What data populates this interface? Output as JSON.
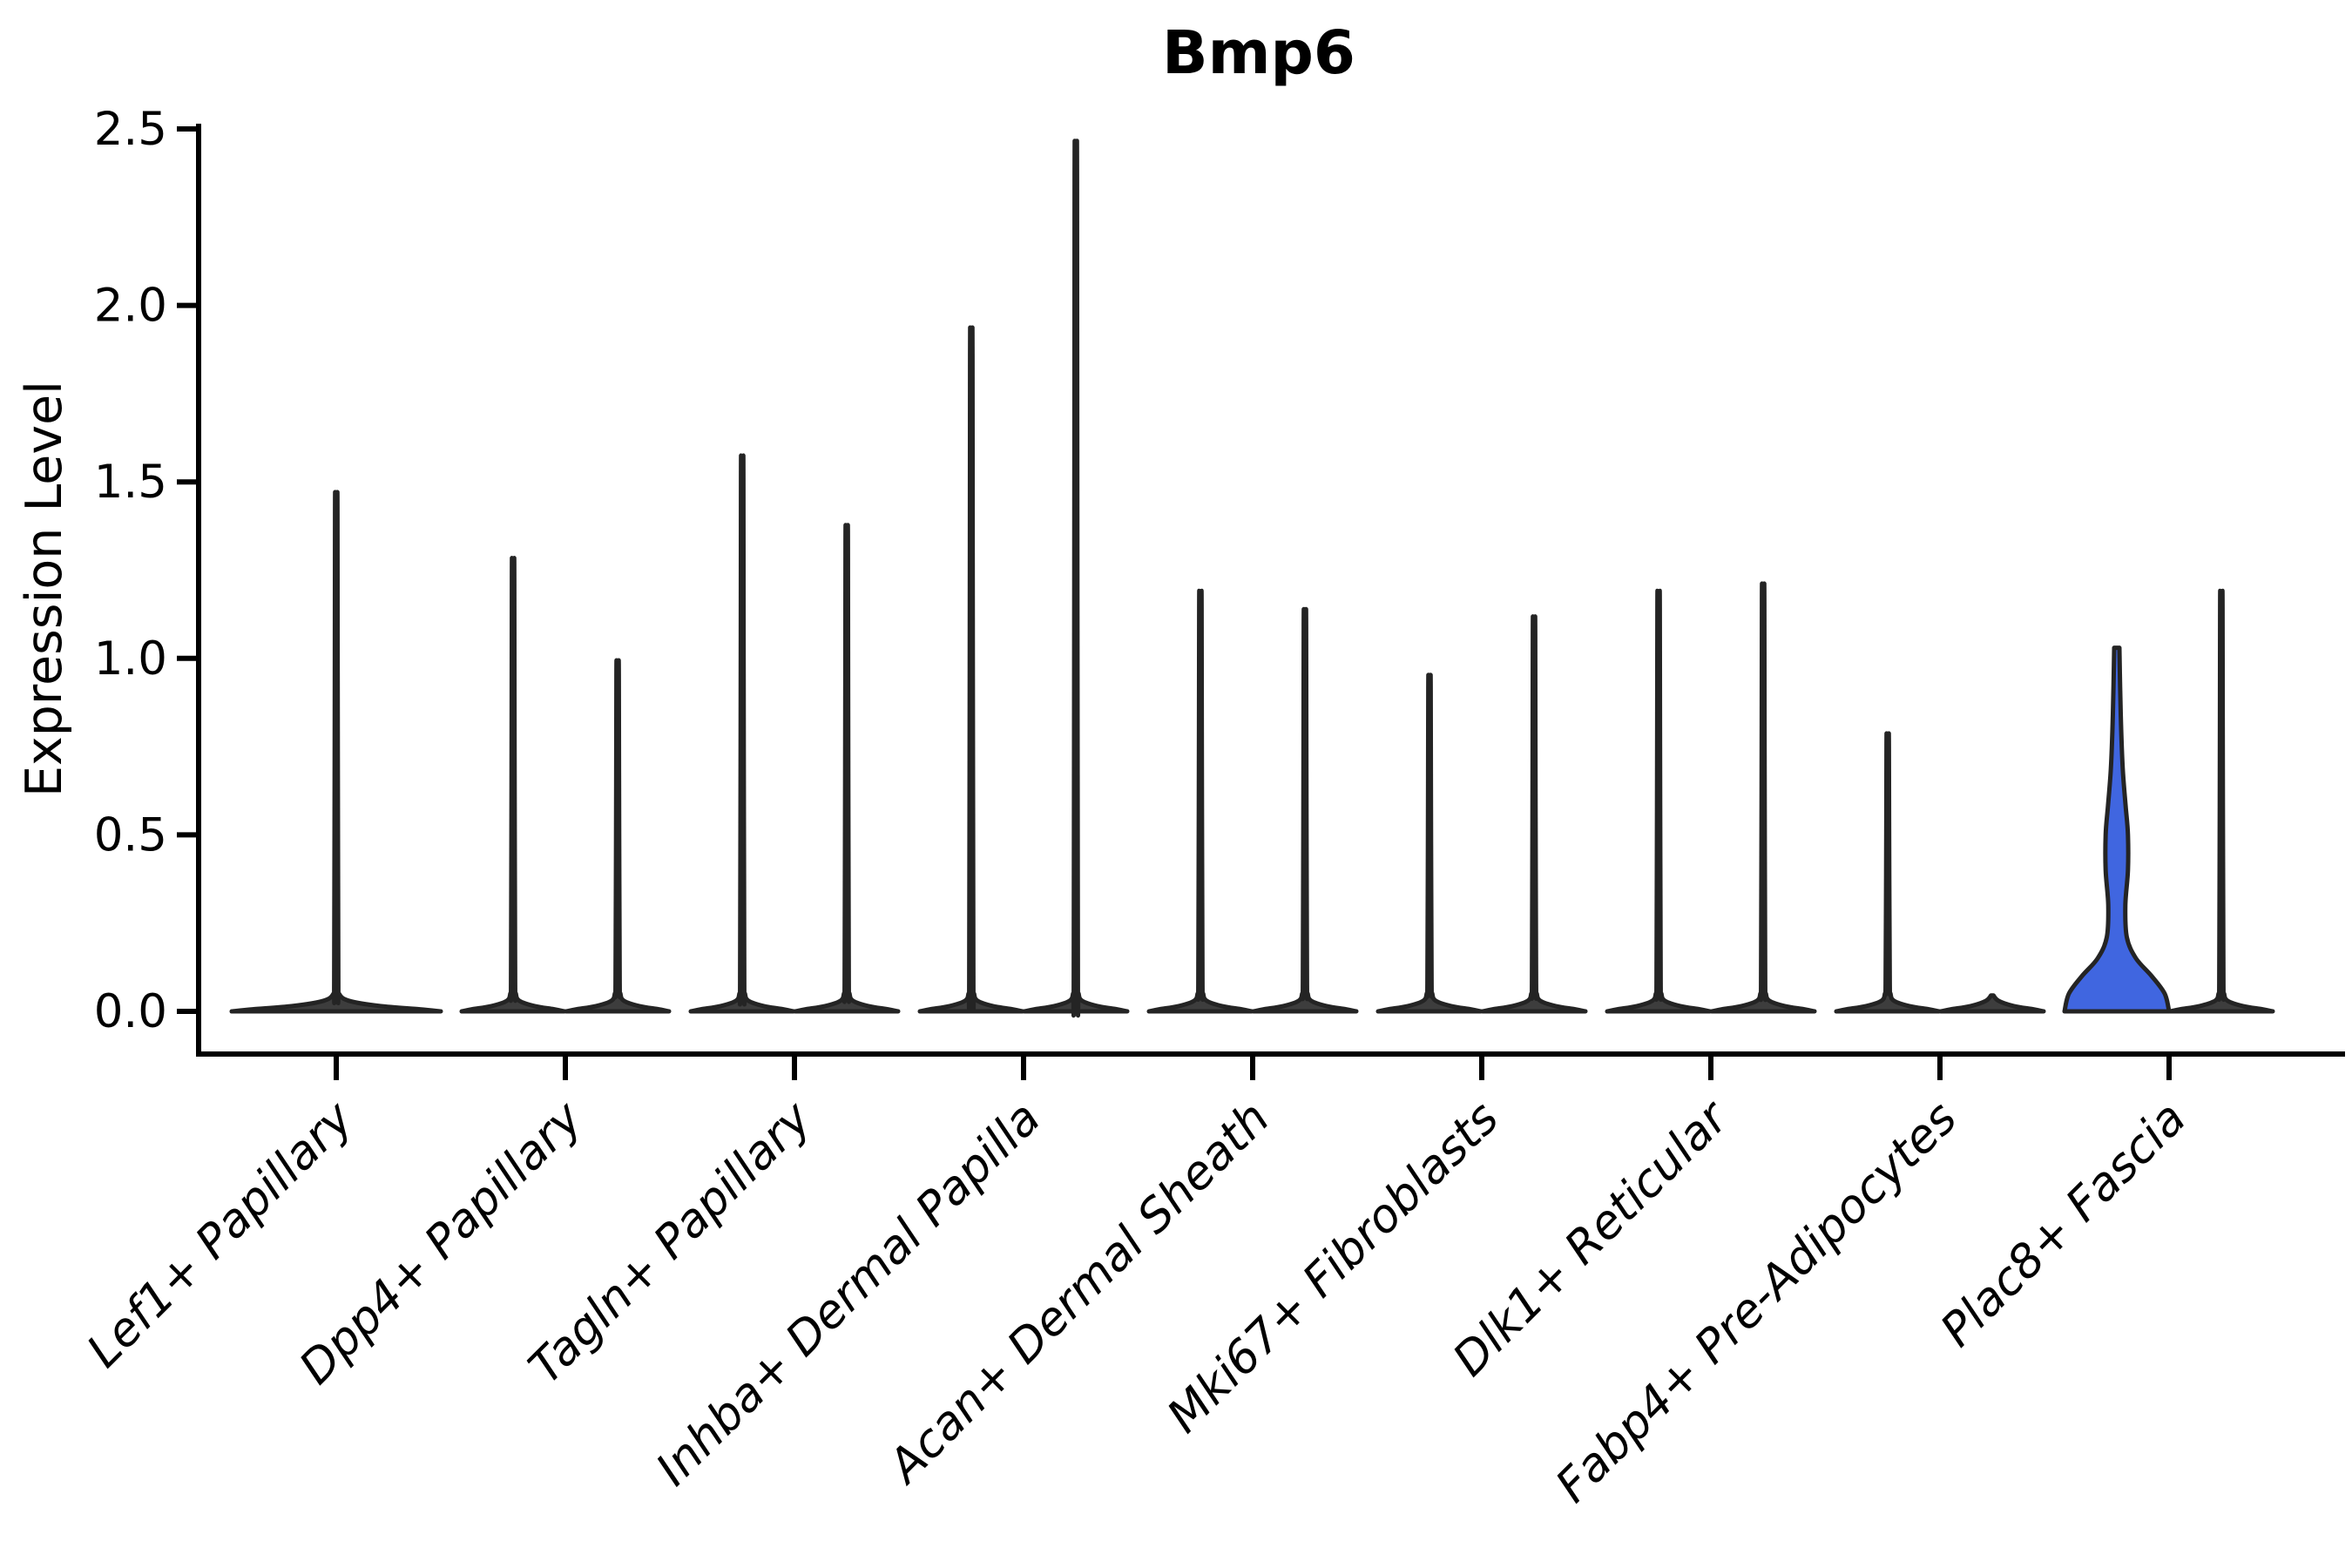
{
  "chart_data": {
    "type": "violin",
    "title": "Bmp6",
    "ylabel": "Expression Level",
    "xlabel": "",
    "ylim": [
      0,
      2.5
    ],
    "yticks": [
      "0.0",
      "0.5",
      "1.0",
      "1.5",
      "2.0",
      "2.5"
    ],
    "grid": false,
    "legend": "none",
    "colors": {
      "violin_fill": "#3d3d3d",
      "violin_stroke": "#242424",
      "highlight_fill": "#4066e0",
      "axis": "#000000"
    },
    "categories": [
      {
        "label": "Lef1+ Papillary",
        "violins": [
          {
            "position": "center",
            "max": 1.44,
            "style": "spike",
            "width": "full",
            "fill": "default"
          }
        ]
      },
      {
        "label": "Dpp4+ Papillary",
        "violins": [
          {
            "position": "left",
            "max": 1.26,
            "style": "spike",
            "fill": "default"
          },
          {
            "position": "right",
            "max": 0.98,
            "style": "spike",
            "fill": "default"
          }
        ]
      },
      {
        "label": "Tagln+ Papillary",
        "violins": [
          {
            "position": "left",
            "max": 1.54,
            "style": "spike",
            "fill": "default"
          },
          {
            "position": "right",
            "max": 1.35,
            "style": "spike",
            "fill": "default"
          }
        ]
      },
      {
        "label": "Inhba+ Dermal Papilla",
        "violins": [
          {
            "position": "left",
            "max": 1.89,
            "style": "spike",
            "fill": "default"
          },
          {
            "position": "right",
            "max": 2.4,
            "style": "spike",
            "fill": "default"
          }
        ]
      },
      {
        "label": "Acan+ Dermal Sheath",
        "violins": [
          {
            "position": "left",
            "max": 1.17,
            "style": "spike",
            "fill": "default"
          },
          {
            "position": "right",
            "max": 1.12,
            "style": "spike",
            "fill": "default"
          }
        ]
      },
      {
        "label": "Mki67+ Fibroblasts",
        "violins": [
          {
            "position": "left",
            "max": 0.94,
            "style": "spike",
            "fill": "default"
          },
          {
            "position": "right",
            "max": 1.1,
            "style": "spike",
            "fill": "default"
          }
        ]
      },
      {
        "label": "Dlk1+ Reticular",
        "violins": [
          {
            "position": "left",
            "max": 1.17,
            "style": "spike",
            "fill": "default"
          },
          {
            "position": "right",
            "max": 1.19,
            "style": "spike",
            "fill": "default"
          }
        ]
      },
      {
        "label": "Fabp4+ Pre-Adipocytes",
        "violins": [
          {
            "position": "left",
            "max": 0.78,
            "style": "spike",
            "fill": "default"
          },
          {
            "position": "right",
            "max": 0,
            "style": "flat",
            "fill": "default"
          }
        ]
      },
      {
        "label": "Plac8+ Fascia",
        "violins": [
          {
            "position": "left",
            "max": 1.03,
            "style": "shaped",
            "fill": "highlight"
          },
          {
            "position": "right",
            "max": 1.17,
            "style": "spike",
            "fill": "default"
          }
        ]
      }
    ]
  }
}
